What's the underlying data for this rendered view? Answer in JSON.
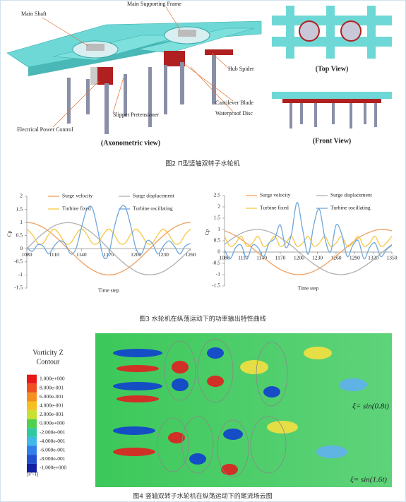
{
  "figure2": {
    "labels": [
      "Main Shaft",
      "Main Supporting Frame",
      "Hub Spider",
      "Cantilever Blade",
      "Waterproof Disc",
      "Slipper Pretensioner",
      "Electrical Power Control"
    ],
    "views": [
      "(Axonometric view)",
      "(Top View)",
      "(Front View)"
    ],
    "caption": "图2 Π型竖轴双转子水轮机"
  },
  "chart_data": [
    {
      "type": "line",
      "xlabel": "Time step",
      "ylabel": "Cp",
      "x": [
        1080,
        1086,
        1092,
        1098,
        1104,
        1110,
        1116,
        1122,
        1128,
        1134,
        1140,
        1146,
        1152,
        1158,
        1164,
        1170,
        1176,
        1182,
        1188,
        1194,
        1200,
        1206,
        1212,
        1218,
        1224,
        1230,
        1236,
        1242,
        1248,
        1254,
        1260
      ],
      "xlim": [
        1080,
        1260
      ],
      "xticks": [
        1080,
        1110,
        1140,
        1170,
        1200,
        1230,
        1260
      ],
      "ylim": [
        -1.5,
        2
      ],
      "yticks": [
        2,
        1.5,
        1,
        0.5,
        0,
        -0.5,
        -1,
        -1.5
      ],
      "series": [
        {
          "name": "Surge velocity",
          "color": "#f0a060",
          "values": [
            1,
            0.98,
            0.91,
            0.81,
            0.67,
            0.5,
            0.31,
            0.1,
            -0.1,
            -0.31,
            -0.5,
            -0.67,
            -0.81,
            -0.91,
            -0.98,
            -1,
            -0.98,
            -0.91,
            -0.81,
            -0.67,
            -0.5,
            -0.31,
            -0.1,
            0.1,
            0.31,
            0.5,
            0.67,
            0.81,
            0.91,
            0.98,
            1
          ]
        },
        {
          "name": "Surge displacement",
          "color": "#b0b0b0",
          "values": [
            0,
            0.21,
            0.41,
            0.59,
            0.74,
            0.87,
            0.95,
            0.99,
            0.99,
            0.95,
            0.87,
            0.74,
            0.59,
            0.41,
            0.21,
            0,
            -0.21,
            -0.41,
            -0.59,
            -0.74,
            -0.87,
            -0.95,
            -0.99,
            -0.99,
            -0.95,
            -0.87,
            -0.74,
            -0.59,
            -0.41,
            -0.21,
            0
          ]
        },
        {
          "name": "Turbine fixed",
          "color": "#f5c842",
          "values": [
            0.75,
            0.54,
            0.21,
            0.21,
            0.54,
            0.75,
            0.54,
            0.21,
            0.21,
            0.54,
            0.75,
            0.54,
            0.21,
            0.21,
            0.54,
            0.75,
            0.54,
            0.21,
            0.21,
            0.54,
            0.75,
            0.54,
            0.21,
            0.21,
            0.54,
            0.75,
            0.54,
            0.21,
            0.21,
            0.54,
            0.75
          ]
        },
        {
          "name": "Turbine oscillating",
          "color": "#6fa8dc",
          "values": [
            0.05,
            -0.1,
            0.15,
            0.1,
            -0.2,
            0.1,
            0.3,
            0.2,
            -0.2,
            0,
            0.8,
            1.5,
            1.55,
            0.7,
            -0.3,
            -0.2,
            0.8,
            1.5,
            1.6,
            0.9,
            0,
            -0.2,
            0.3,
            0.2,
            -0.2,
            0.1,
            0.3,
            0.1,
            -0.2,
            0.1,
            0.2
          ]
        }
      ]
    },
    {
      "type": "line",
      "xlabel": "Time step",
      "ylabel": "Cp",
      "x": [
        1080,
        1089,
        1098,
        1107,
        1116,
        1125,
        1134,
        1143,
        1152,
        1161,
        1170,
        1179,
        1188,
        1197,
        1206,
        1215,
        1224,
        1233,
        1242,
        1251,
        1260,
        1269,
        1278,
        1287,
        1296,
        1305,
        1314,
        1323,
        1332,
        1341,
        1350
      ],
      "xlim": [
        1080,
        1350
      ],
      "xticks": [
        1080,
        1110,
        1140,
        1170,
        1200,
        1230,
        1260,
        1290,
        1320,
        1350
      ],
      "ylim": [
        -1.5,
        2.5
      ],
      "yticks": [
        2.5,
        2,
        1.5,
        1,
        0.5,
        0,
        -0.5,
        -1,
        -1.5
      ],
      "series": [
        {
          "name": "Surge velocity",
          "color": "#f0a060",
          "values": [
            0.94,
            0.85,
            0.72,
            0.56,
            0.37,
            0.17,
            -0.03,
            -0.24,
            -0.44,
            -0.62,
            -0.77,
            -0.88,
            -0.96,
            -1,
            -0.99,
            -0.94,
            -0.85,
            -0.72,
            -0.56,
            -0.37,
            -0.17,
            0.03,
            0.24,
            0.44,
            0.62,
            0.77,
            0.88,
            0.96,
            1,
            0.99,
            0.94
          ]
        },
        {
          "name": "Surge displacement",
          "color": "#b0b0b0",
          "values": [
            0.34,
            0.53,
            0.69,
            0.83,
            0.93,
            0.98,
            1,
            0.97,
            0.9,
            0.79,
            0.64,
            0.47,
            0.28,
            0.07,
            -0.14,
            -0.34,
            -0.53,
            -0.69,
            -0.83,
            -0.93,
            -0.98,
            -1,
            -0.97,
            -0.9,
            -0.79,
            -0.64,
            -0.47,
            -0.28,
            -0.07,
            0.14,
            0.34
          ]
        },
        {
          "name": "Turbine fixed",
          "color": "#f5c842",
          "values": [
            0.7,
            0.25,
            0.4,
            0.7,
            0.25,
            0.4,
            0.7,
            0.25,
            0.4,
            0.7,
            0.25,
            0.4,
            0.7,
            0.25,
            0.4,
            0.7,
            0.25,
            0.4,
            0.7,
            0.25,
            0.4,
            0.7,
            0.25,
            0.4,
            0.7,
            0.25,
            0.4,
            0.7,
            0.25,
            0.4,
            0.7
          ]
        },
        {
          "name": "Turbine oscillating",
          "color": "#6fa8dc",
          "values": [
            0.1,
            -0.3,
            0.2,
            0.3,
            -0.3,
            0.3,
            0.2,
            -0.2,
            0.4,
            0.6,
            1.2,
            0.2,
            0.8,
            2.2,
            1,
            -0.1,
            1.2,
            1.9,
            0.6,
            0,
            1.2,
            0.8,
            -0.2,
            0.3,
            0.5,
            -0.3,
            0.2,
            0.4,
            -0.2,
            0.1,
            0.3
          ]
        }
      ]
    }
  ],
  "figure3": {
    "caption": "图3 水轮机在纵荡运动下的功率输出特性曲线"
  },
  "figure4": {
    "colorbar_title": [
      "Vorticity Z",
      "Contour"
    ],
    "colorbar_labels": [
      "1.000e+000",
      "8.000e-001",
      "6.000e-001",
      "4.000e-001",
      "2.000e-001",
      "0.000e+000",
      "-2.000e-001",
      "-4.000e-001",
      "-6.000e-001",
      "-8.000e-001",
      "-1.000e+000"
    ],
    "unit": "[s^-1]",
    "annotations": [
      "ξ= sin(0.8t)",
      "ξ= sin(1.6t)"
    ],
    "caption": "图4 竖轴双转子水轮机在纵荡运动下的尾流场云图"
  }
}
